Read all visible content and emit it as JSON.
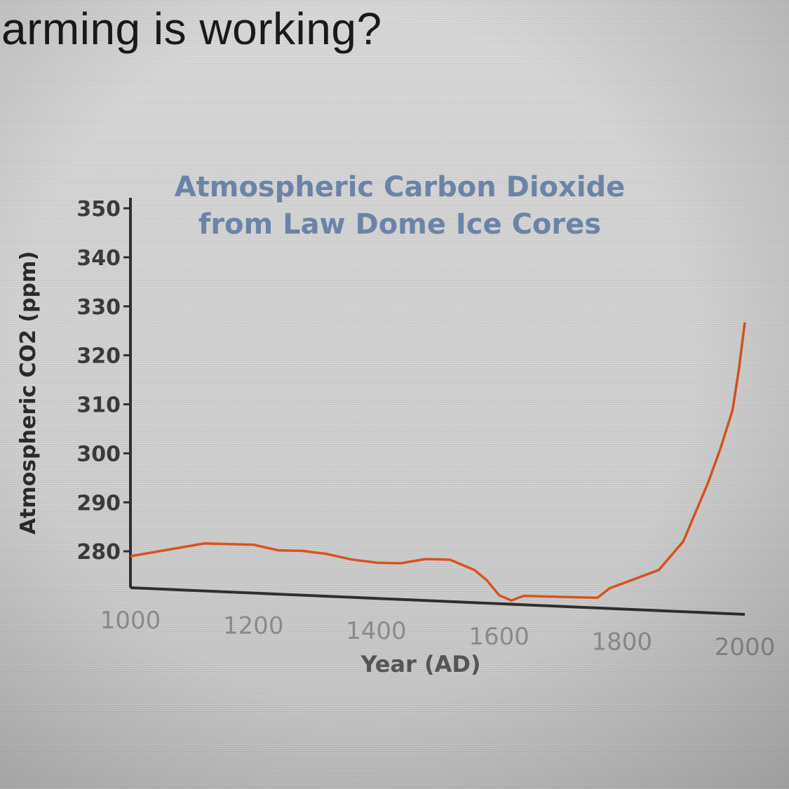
{
  "question": {
    "text": "arming is working?"
  },
  "colors": {
    "series": "#d9531e",
    "axis": "#2f2f2f",
    "title": "#6c83a8"
  },
  "chart_data": {
    "type": "line",
    "title": "Atmospheric Carbon Dioxide",
    "subtitle": "from Law Dome Ice Cores",
    "xlabel": "Year (AD)",
    "ylabel": "Atmospheric CO2 (ppm)",
    "xlim": [
      1000,
      2000
    ],
    "ylim": [
      270,
      350
    ],
    "x_ticks": [
      "1000",
      "1200",
      "1400",
      "1600",
      "1800",
      "2000"
    ],
    "y_ticks": [
      "350",
      "340",
      "330",
      "320",
      "310",
      "300",
      "290",
      "280"
    ],
    "grid": false,
    "series": [
      {
        "x": [
          1000,
          1040,
          1080,
          1120,
          1160,
          1200,
          1240,
          1280,
          1320,
          1360,
          1400,
          1440,
          1480,
          1520,
          1560,
          1580,
          1600,
          1620,
          1640,
          1680,
          1720,
          1760,
          1780,
          1800,
          1820,
          1860,
          1880,
          1900,
          1920,
          1940,
          1960,
          1980,
          1990,
          2000
        ],
        "y": [
          279,
          280,
          281,
          282,
          282,
          282,
          281,
          281,
          280.5,
          279.5,
          279,
          279,
          280,
          280,
          278,
          276,
          273,
          272,
          273,
          273,
          273,
          273,
          275,
          276,
          277,
          279,
          282,
          285,
          291,
          297,
          304,
          312,
          320,
          330
        ]
      }
    ]
  }
}
